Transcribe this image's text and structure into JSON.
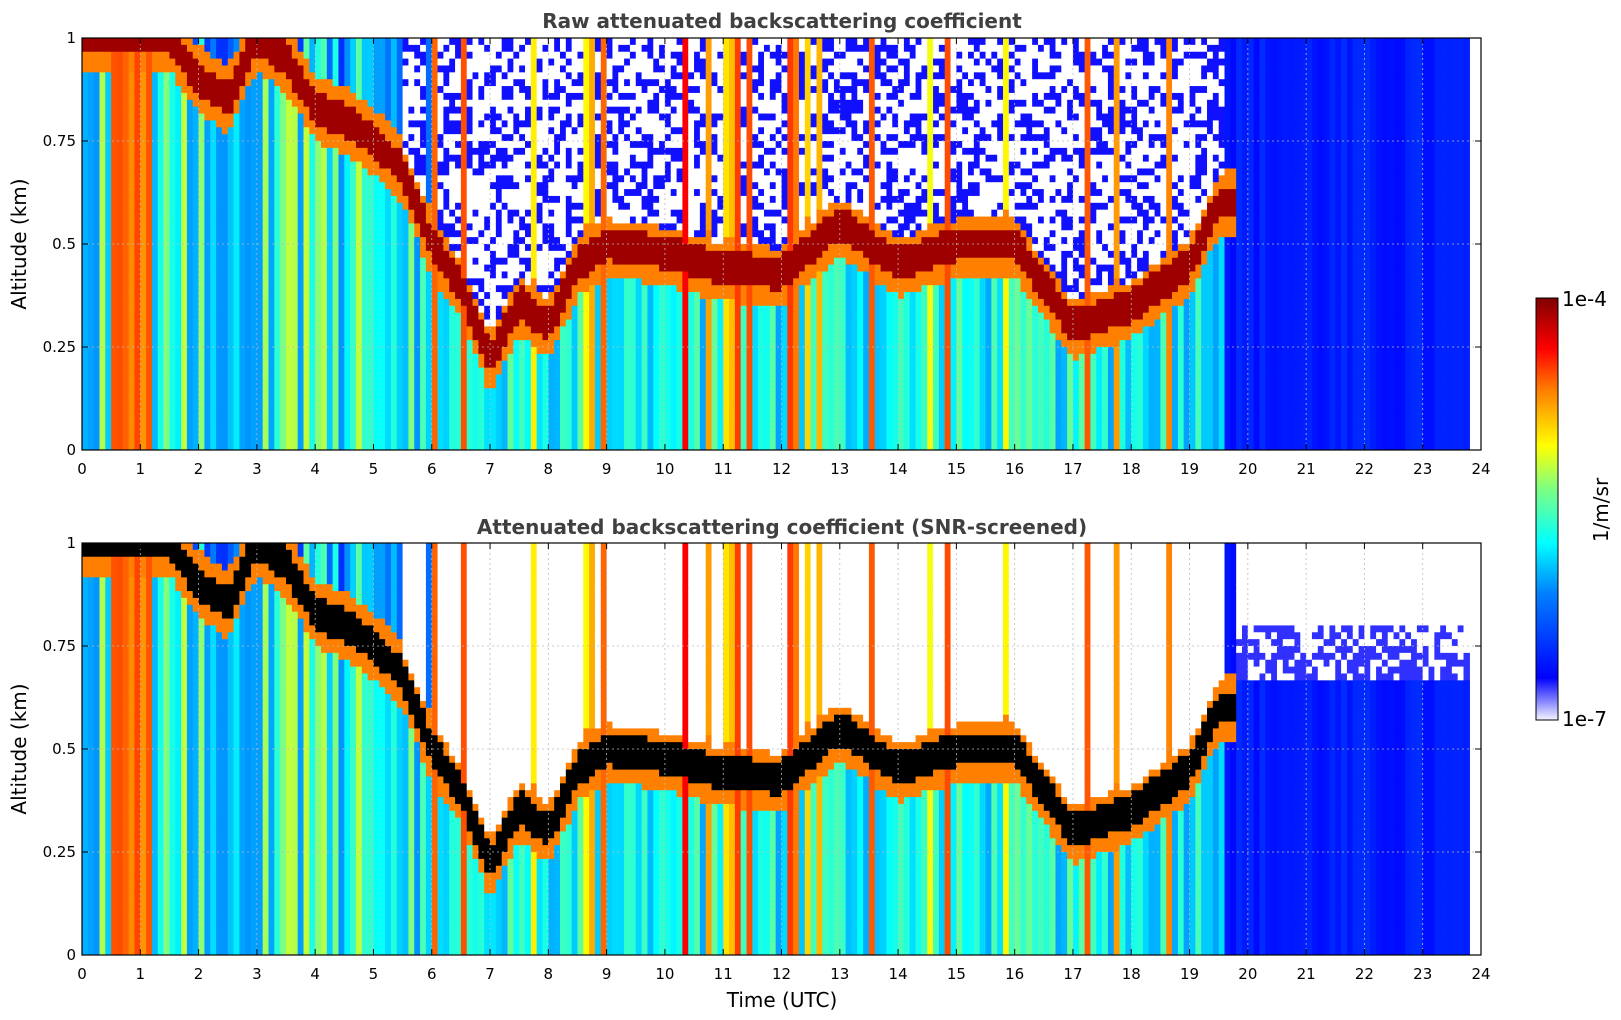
{
  "chart_data": [
    {
      "type": "heatmap",
      "title": "Raw attenuated backscattering coefficient",
      "xlabel": "",
      "ylabel": "Altitude (km)",
      "xlim": [
        0,
        24
      ],
      "ylim": [
        0,
        1
      ],
      "xticks": [
        "0",
        "1",
        "2",
        "3",
        "4",
        "5",
        "6",
        "7",
        "8",
        "9",
        "10",
        "11",
        "12",
        "13",
        "14",
        "15",
        "16",
        "17",
        "18",
        "19",
        "20",
        "21",
        "22",
        "23",
        "24"
      ],
      "yticks": [
        "0",
        "0.25",
        "0.5",
        "0.75",
        "1"
      ],
      "grid": true,
      "screened": false
    },
    {
      "type": "heatmap",
      "title": "Attenuated backscattering coefficient (SNR-screened)",
      "xlabel": "Time (UTC)",
      "ylabel": "Altitude (km)",
      "xlim": [
        0,
        24
      ],
      "ylim": [
        0,
        1
      ],
      "xticks": [
        "0",
        "1",
        "2",
        "3",
        "4",
        "5",
        "6",
        "7",
        "8",
        "9",
        "10",
        "11",
        "12",
        "13",
        "14",
        "15",
        "16",
        "17",
        "18",
        "19",
        "20",
        "21",
        "22",
        "23",
        "24"
      ],
      "yticks": [
        "0",
        "0.25",
        "0.5",
        "0.75",
        "1"
      ],
      "grid": true,
      "screened": true
    }
  ],
  "colorbar": {
    "max_label": "1e-4",
    "min_label": "1e-7",
    "unit_label": "1/m/sr",
    "colormap": "jet",
    "scale": "log"
  },
  "layer": {
    "description_values": {
      "hours": [
        0,
        0.5,
        1,
        1.5,
        2,
        2.5,
        3,
        3.5,
        4,
        4.5,
        5,
        5.5,
        6,
        6.5,
        7,
        7.5,
        8,
        8.5,
        9,
        10,
        11,
        12,
        13,
        14,
        15,
        16,
        17,
        18,
        19,
        19.5
      ],
      "altitude_km": [
        1.0,
        1.0,
        1.0,
        1.0,
        0.9,
        0.85,
        1.0,
        0.95,
        0.83,
        0.8,
        0.75,
        0.68,
        0.5,
        0.4,
        0.22,
        0.36,
        0.3,
        0.45,
        0.5,
        0.48,
        0.44,
        0.43,
        0.55,
        0.45,
        0.5,
        0.5,
        0.3,
        0.35,
        0.45,
        0.6
      ]
    }
  }
}
